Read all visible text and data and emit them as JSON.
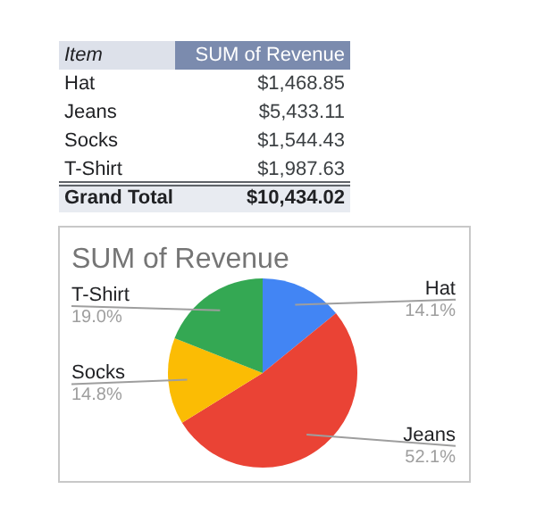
{
  "chart_data": {
    "type": "pie",
    "title": "SUM of Revenue",
    "categories": [
      "Hat",
      "Jeans",
      "Socks",
      "T-Shirt"
    ],
    "values": [
      14.1,
      52.1,
      14.8,
      19.0
    ],
    "colors": [
      "#4285f4",
      "#ea4335",
      "#fbbc04",
      "#34a853"
    ],
    "annotations": [
      {
        "text": "14.1%",
        "x": "Hat"
      },
      {
        "text": "52.1%",
        "x": "Jeans"
      },
      {
        "text": "14.8%",
        "x": "Socks"
      },
      {
        "text": "19.0%",
        "x": "T-Shirt"
      },
      "Item",
      "SUM of Revenue",
      "$1,468.85",
      "$5,433.11",
      "$1,544.43",
      "$1,987.63",
      "Grand Total",
      "$10,434.02"
    ]
  }
}
